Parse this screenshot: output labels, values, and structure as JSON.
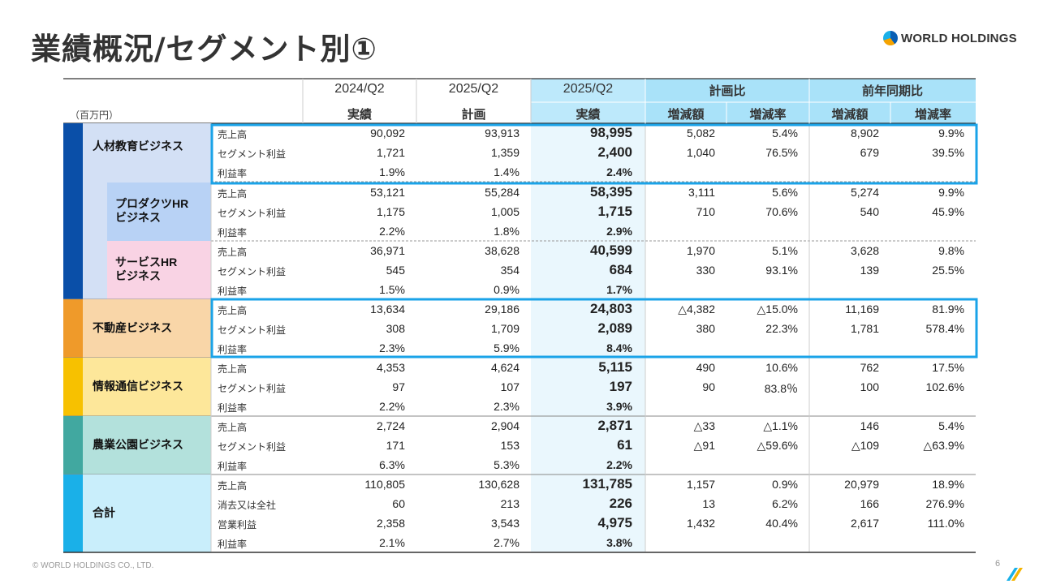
{
  "title": "業績概況/セグメント別①",
  "logo_text": "WORLD HOLDINGS",
  "footer": "© WORLD HOLDINGS CO., LTD.",
  "page_number": "6",
  "unit": "（百万円）",
  "headers": {
    "col_2024q2": "2024/Q2",
    "col_2025q2_plan": "2025/Q2",
    "col_2025q2_actual": "2025/Q2",
    "plan_ratio": "計画比",
    "yoy": "前年同期比",
    "actual": "実績",
    "plan": "計画",
    "actual2": "実績",
    "diff_amount": "増減額",
    "diff_rate": "増減率",
    "diff_amount2": "増減額",
    "diff_rate2": "増減率"
  },
  "colors": {
    "hr_bar": "#0a4fa8",
    "hr_bg": "#d3e0f5",
    "prod_bg": "#b8d2f5",
    "serv_bg": "#f9d3e4",
    "re_bar": "#ef9a2a",
    "re_bg": "#f9d6a8",
    "it_bar": "#f7c100",
    "it_bg": "#fde79a",
    "agri_bar": "#41a8a0",
    "agri_bg": "#b3e1dc",
    "total_bar": "#1ab0e8",
    "total_bg": "#c9eefb",
    "highlight": "#1aa3e8"
  },
  "segments": [
    {
      "name": "人材教育ビジネス",
      "rows": [
        {
          "label": "売上高",
          "v2024": "90,092",
          "plan": "93,913",
          "actual": "98,995",
          "pd": "5,082",
          "pr": "5.4%",
          "yd": "8,902",
          "yr": "9.9%"
        },
        {
          "label": "セグメント利益",
          "v2024": "1,721",
          "plan": "1,359",
          "actual": "2,400",
          "pd": "1,040",
          "pr": "76.5%",
          "yd": "679",
          "yr": "39.5%"
        },
        {
          "label": "利益率",
          "v2024": "1.9%",
          "plan": "1.4%",
          "actual": "2.4%",
          "pd": "",
          "pr": "",
          "yd": "",
          "yr": ""
        }
      ]
    },
    {
      "name": "プロダクツHR\nビジネス",
      "rows": [
        {
          "label": "売上高",
          "v2024": "53,121",
          "plan": "55,284",
          "actual": "58,395",
          "pd": "3,111",
          "pr": "5.6%",
          "yd": "5,274",
          "yr": "9.9%"
        },
        {
          "label": "セグメント利益",
          "v2024": "1,175",
          "plan": "1,005",
          "actual": "1,715",
          "pd": "710",
          "pr": "70.6%",
          "yd": "540",
          "yr": "45.9%"
        },
        {
          "label": "利益率",
          "v2024": "2.2%",
          "plan": "1.8%",
          "actual": "2.9%",
          "pd": "",
          "pr": "",
          "yd": "",
          "yr": ""
        }
      ]
    },
    {
      "name": "サービスHR\nビジネス",
      "rows": [
        {
          "label": "売上高",
          "v2024": "36,971",
          "plan": "38,628",
          "actual": "40,599",
          "pd": "1,970",
          "pr": "5.1%",
          "yd": "3,628",
          "yr": "9.8%"
        },
        {
          "label": "セグメント利益",
          "v2024": "545",
          "plan": "354",
          "actual": "684",
          "pd": "330",
          "pr": "93.1%",
          "yd": "139",
          "yr": "25.5%"
        },
        {
          "label": "利益率",
          "v2024": "1.5%",
          "plan": "0.9%",
          "actual": "1.7%",
          "pd": "",
          "pr": "",
          "yd": "",
          "yr": ""
        }
      ]
    },
    {
      "name": "不動産ビジネス",
      "rows": [
        {
          "label": "売上高",
          "v2024": "13,634",
          "plan": "29,186",
          "actual": "24,803",
          "pd": "△4,382",
          "pr": "△15.0%",
          "yd": "11,169",
          "yr": "81.9%"
        },
        {
          "label": "セグメント利益",
          "v2024": "308",
          "plan": "1,709",
          "actual": "2,089",
          "pd": "380",
          "pr": "22.3%",
          "yd": "1,781",
          "yr": "578.4%"
        },
        {
          "label": "利益率",
          "v2024": "2.3%",
          "plan": "5.9%",
          "actual": "8.4%",
          "pd": "",
          "pr": "",
          "yd": "",
          "yr": ""
        }
      ]
    },
    {
      "name": "情報通信ビジネス",
      "rows": [
        {
          "label": "売上高",
          "v2024": "4,353",
          "plan": "4,624",
          "actual": "5,115",
          "pd": "490",
          "pr": "10.6%",
          "yd": "762",
          "yr": "17.5%"
        },
        {
          "label": "セグメント利益",
          "v2024": "97",
          "plan": "107",
          "actual": "197",
          "pd": "90",
          "pr": "83.8％",
          "yd": "100",
          "yr": "102.6%"
        },
        {
          "label": "利益率",
          "v2024": "2.2%",
          "plan": "2.3%",
          "actual": "3.9%",
          "pd": "",
          "pr": "",
          "yd": "",
          "yr": ""
        }
      ]
    },
    {
      "name": "農業公園ビジネス",
      "rows": [
        {
          "label": "売上高",
          "v2024": "2,724",
          "plan": "2,904",
          "actual": "2,871",
          "pd": "△33",
          "pr": "△1.1%",
          "yd": "146",
          "yr": "5.4%"
        },
        {
          "label": "セグメント利益",
          "v2024": "171",
          "plan": "153",
          "actual": "61",
          "pd": "△91",
          "pr": "△59.6%",
          "yd": "△109",
          "yr": "△63.9%"
        },
        {
          "label": "利益率",
          "v2024": "6.3%",
          "plan": "5.3%",
          "actual": "2.2%",
          "pd": "",
          "pr": "",
          "yd": "",
          "yr": ""
        }
      ]
    },
    {
      "name": "合計",
      "rows": [
        {
          "label": "売上高",
          "v2024": "110,805",
          "plan": "130,628",
          "actual": "131,785",
          "pd": "1,157",
          "pr": "0.9%",
          "yd": "20,979",
          "yr": "18.9%"
        },
        {
          "label": "消去又は全社",
          "v2024": "60",
          "plan": "213",
          "actual": "226",
          "pd": "13",
          "pr": "6.2%",
          "yd": "166",
          "yr": "276.9%"
        },
        {
          "label": "営業利益",
          "v2024": "2,358",
          "plan": "3,543",
          "actual": "4,975",
          "pd": "1,432",
          "pr": "40.4%",
          "yd": "2,617",
          "yr": "111.0%"
        },
        {
          "label": "利益率",
          "v2024": "2.1%",
          "plan": "2.7%",
          "actual": "3.8%",
          "pd": "",
          "pr": "",
          "yd": "",
          "yr": ""
        }
      ]
    }
  ]
}
